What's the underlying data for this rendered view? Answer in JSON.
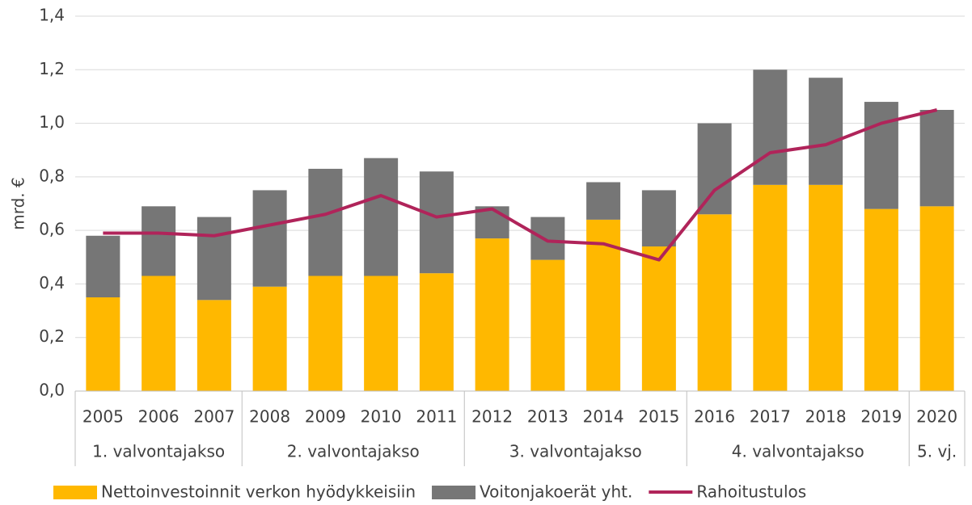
{
  "chart_data": {
    "type": "bar",
    "stacked": true,
    "y_label": "mrd. €",
    "category_groups": [
      {
        "label": "1. valvontajakso",
        "categories": [
          "2005",
          "2006",
          "2007"
        ]
      },
      {
        "label": "2. valvontajakso",
        "categories": [
          "2008",
          "2009",
          "2010",
          "2011"
        ]
      },
      {
        "label": "3. valvontajakso",
        "categories": [
          "2012",
          "2013",
          "2014",
          "2015"
        ]
      },
      {
        "label": "4. valvontajakso",
        "categories": [
          "2016",
          "2017",
          "2018",
          "2019"
        ]
      },
      {
        "label": "5. vj.",
        "categories": [
          "2020"
        ]
      }
    ],
    "series": [
      {
        "name": "Nettoinvestoinnit verkon hyödykkeisiin",
        "type": "bar",
        "color": "#ffb800",
        "values": [
          0.35,
          0.43,
          0.34,
          0.39,
          0.43,
          0.43,
          0.44,
          0.57,
          0.49,
          0.64,
          0.54,
          0.66,
          0.77,
          0.77,
          0.68,
          0.69
        ]
      },
      {
        "name": "Voitonjakoerät yht.",
        "type": "bar",
        "color": "#767676",
        "values": [
          0.23,
          0.26,
          0.31,
          0.36,
          0.4,
          0.44,
          0.38,
          0.12,
          0.16,
          0.14,
          0.21,
          0.34,
          0.43,
          0.4,
          0.4,
          0.36
        ]
      },
      {
        "name": "Rahoitustulos",
        "type": "line",
        "color": "#b0245a",
        "values": [
          0.59,
          0.59,
          0.58,
          0.62,
          0.66,
          0.73,
          0.65,
          0.68,
          0.56,
          0.55,
          0.49,
          0.75,
          0.89,
          0.92,
          1.0,
          1.05
        ]
      }
    ],
    "ylim": [
      0,
      1.4
    ],
    "yticks": [
      {
        "value": 0,
        "label": "0,0"
      },
      {
        "value": 0.2,
        "label": "0,2"
      },
      {
        "value": 0.4,
        "label": "0,4"
      },
      {
        "value": 0.6,
        "label": "0,6"
      },
      {
        "value": 0.8,
        "label": "0,8"
      },
      {
        "value": 1.0,
        "label": "1,0"
      },
      {
        "value": 1.2,
        "label": "1,2"
      },
      {
        "value": 1.4,
        "label": "1,4"
      }
    ],
    "grid": true,
    "legend": "bottom"
  }
}
